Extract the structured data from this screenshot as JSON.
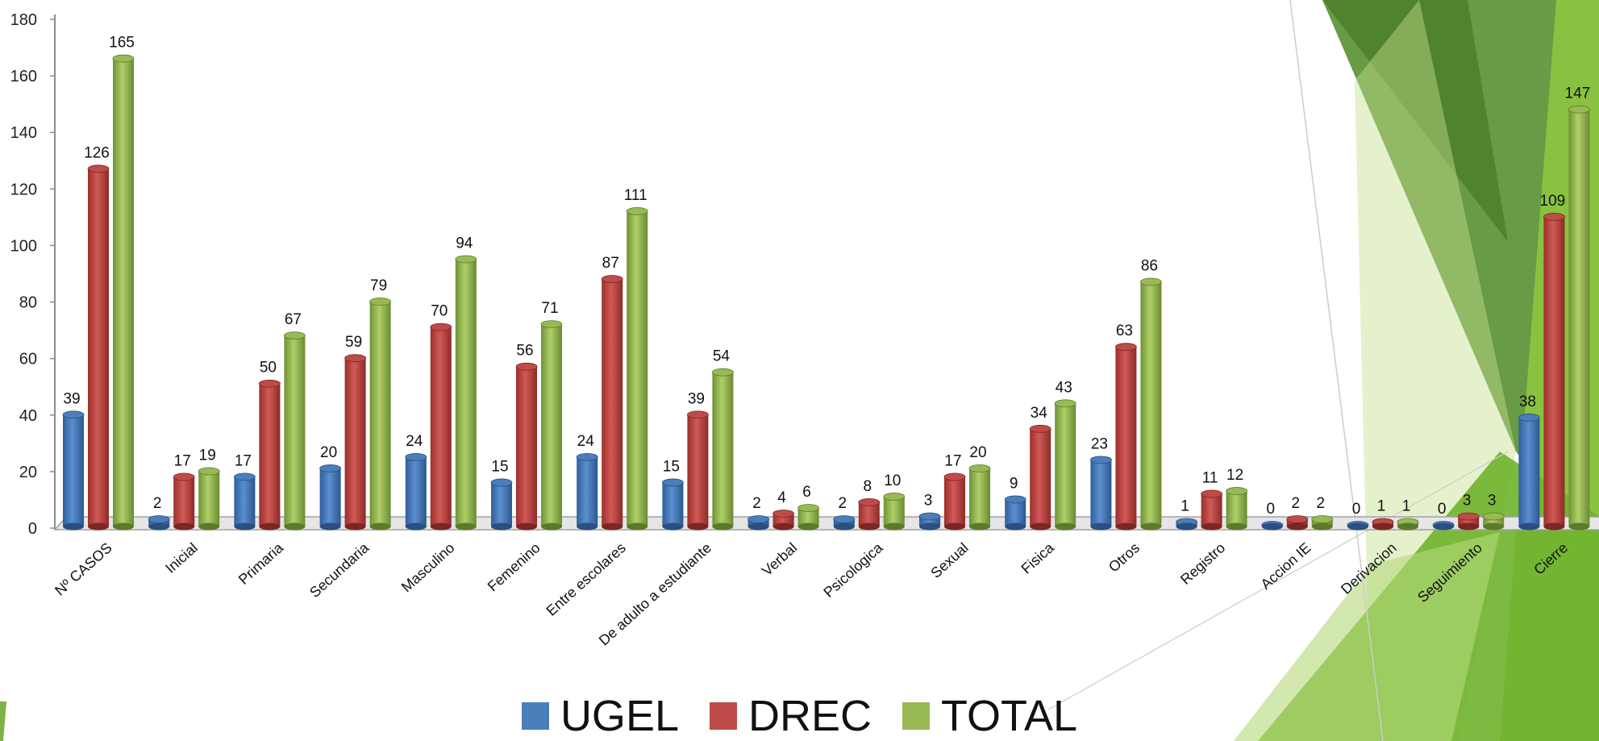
{
  "chart_data": {
    "type": "bar",
    "categories": [
      "Nº CASOS",
      "Inicial",
      "Primaria",
      "Secundaria",
      "Masculino",
      "Femenino",
      "Entre escolares",
      "De adulto a estudiante",
      "Verbal",
      "Psicologica",
      "Sexual",
      "Fisica",
      "Otros",
      "Registro",
      "Accion IE",
      "Derivacion",
      "Seguimiento",
      "Cierre"
    ],
    "series": [
      {
        "name": "UGEL",
        "color": "#4a7ebb",
        "values": [
          39,
          2,
          17,
          20,
          24,
          15,
          24,
          15,
          2,
          2,
          3,
          9,
          23,
          1,
          0,
          0,
          0,
          38
        ]
      },
      {
        "name": "DREC",
        "color": "#be4b48",
        "values": [
          126,
          17,
          50,
          59,
          70,
          56,
          87,
          39,
          4,
          8,
          17,
          34,
          63,
          11,
          2,
          1,
          3,
          109
        ]
      },
      {
        "name": "TOTAL",
        "color": "#98b954",
        "values": [
          165,
          19,
          67,
          79,
          94,
          71,
          111,
          54,
          6,
          10,
          20,
          43,
          86,
          12,
          2,
          1,
          3,
          147
        ]
      }
    ],
    "y_ticks": [
      "0",
      "20",
      "40",
      "60",
      "80",
      "100",
      "120",
      "140",
      "160",
      "180"
    ],
    "ylim": [
      0,
      180
    ],
    "title": "",
    "xlabel": "",
    "ylabel": "",
    "grid": false,
    "legend_position": "bottom"
  },
  "legend": {
    "items": [
      {
        "label": "UGEL",
        "color": "#4a7ebb"
      },
      {
        "label": "DREC",
        "color": "#be4b48"
      },
      {
        "label": "TOTAL",
        "color": "#98b954"
      }
    ]
  },
  "decor_colors": {
    "dark_green": "#5a8f2a",
    "mid_green": "#7cb342",
    "light_green": "#a5d05f"
  }
}
